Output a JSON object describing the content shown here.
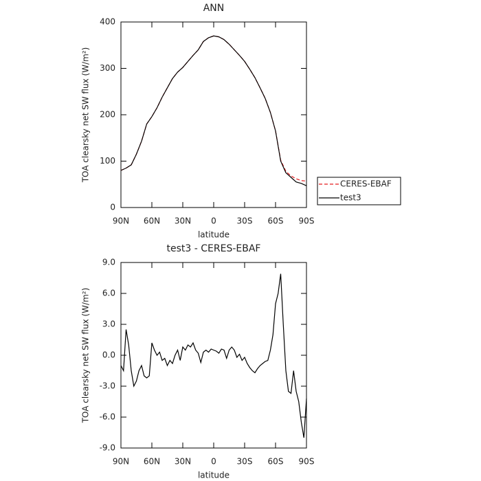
{
  "chart_data": [
    {
      "type": "line",
      "title": "ANN",
      "xlabel": "latitude",
      "ylabel": "TOA clearsky net SW flux (W/m²)",
      "x": [
        90,
        85,
        80,
        75,
        70,
        65,
        60,
        55,
        50,
        45,
        40,
        35,
        30,
        25,
        20,
        15,
        10,
        5,
        0,
        -5,
        -10,
        -15,
        -20,
        -25,
        -30,
        -35,
        -40,
        -45,
        -50,
        -55,
        -60,
        -65,
        -70,
        -75,
        -80,
        -85,
        -90
      ],
      "series": [
        {
          "name": "CERES-EBAF",
          "color": "#e41a1c",
          "line_style": "dashed",
          "values": [
            80,
            85,
            92,
            115,
            143,
            180,
            196,
            215,
            238,
            258,
            278,
            292,
            302,
            315,
            328,
            340,
            358,
            366,
            370,
            368,
            362,
            352,
            340,
            328,
            315,
            298,
            280,
            258,
            235,
            205,
            165,
            102,
            78,
            68,
            62,
            58,
            57
          ]
        },
        {
          "name": "test3",
          "color": "#000000",
          "line_style": "solid",
          "values": [
            80,
            85,
            92,
            115,
            143,
            180,
            196,
            215,
            238,
            258,
            278,
            292,
            302,
            315,
            328,
            340,
            358,
            366,
            370,
            368,
            362,
            352,
            340,
            328,
            315,
            298,
            280,
            258,
            235,
            205,
            165,
            100,
            75,
            65,
            55,
            52,
            47
          ]
        }
      ],
      "xlim": [
        90,
        -90
      ],
      "xticks": [
        {
          "value": 90,
          "label": "90N"
        },
        {
          "value": 60,
          "label": "60N"
        },
        {
          "value": 30,
          "label": "30N"
        },
        0,
        {
          "value": -30,
          "label": "30S"
        },
        {
          "value": -60,
          "label": "60S"
        },
        {
          "value": -90,
          "label": "90S"
        }
      ],
      "ylim": [
        0,
        400
      ],
      "yticks": [
        0,
        100,
        200,
        300,
        400
      ],
      "legend": "right"
    },
    {
      "type": "line",
      "title": "test3 - CERES-EBAF",
      "xlabel": "latitude",
      "ylabel": "TOA clearsky net SW flux (W/m²)",
      "x": [
        90,
        87.5,
        85,
        82.5,
        80,
        77.5,
        75,
        72.5,
        70,
        67.5,
        65,
        62.5,
        60,
        57.5,
        55,
        52.5,
        50,
        47.5,
        45,
        42.5,
        40,
        37.5,
        35,
        32.5,
        30,
        27.5,
        25,
        22.5,
        20,
        17.5,
        15,
        12.5,
        10,
        7.5,
        5,
        2.5,
        0,
        -2.5,
        -5,
        -7.5,
        -10,
        -12.5,
        -15,
        -17.5,
        -20,
        -22.5,
        -25,
        -27.5,
        -30,
        -32.5,
        -35,
        -37.5,
        -40,
        -42.5,
        -45,
        -47.5,
        -50,
        -52.5,
        -55,
        -57.5,
        -60,
        -62.5,
        -65,
        -67.5,
        -70,
        -72.5,
        -75,
        -77.5,
        -80,
        -82.5,
        -85,
        -87.5,
        -90
      ],
      "series": [
        {
          "color": "#000000",
          "line_style": "solid",
          "values": [
            -1.0,
            -1.5,
            2.5,
            1.0,
            -1.5,
            -3.0,
            -2.5,
            -1.5,
            -1.0,
            -2.0,
            -2.2,
            -2.0,
            1.2,
            0.5,
            0.0,
            0.3,
            -0.5,
            -0.3,
            -1.0,
            -0.5,
            -0.8,
            0.0,
            0.5,
            -0.5,
            0.8,
            0.5,
            1.0,
            0.8,
            1.2,
            0.5,
            0.2,
            -0.7,
            0.3,
            0.5,
            0.3,
            0.6,
            0.5,
            0.4,
            0.2,
            0.6,
            0.5,
            -0.3,
            0.5,
            0.8,
            0.5,
            -0.2,
            0.1,
            -0.5,
            -0.2,
            -0.8,
            -1.2,
            -1.5,
            -1.7,
            -1.3,
            -1.0,
            -0.8,
            -0.6,
            -0.5,
            0.5,
            2.0,
            5.0,
            6.0,
            7.9,
            3.0,
            -1.5,
            -3.5,
            -3.7,
            -1.5,
            -3.5,
            -4.5,
            -6.5,
            -8.0,
            -4.2
          ]
        }
      ],
      "xlim": [
        90,
        -90
      ],
      "xticks": [
        {
          "value": 90,
          "label": "90N"
        },
        {
          "value": 60,
          "label": "60N"
        },
        {
          "value": 30,
          "label": "30N"
        },
        0,
        {
          "value": -30,
          "label": "30S"
        },
        {
          "value": -60,
          "label": "60S"
        },
        {
          "value": -90,
          "label": "90S"
        }
      ],
      "ylim": [
        -9,
        9
      ],
      "yticks": [
        {
          "value": -9,
          "label": "-9.0"
        },
        {
          "value": -6,
          "label": "-6.0"
        },
        {
          "value": -3,
          "label": "-3.0"
        },
        {
          "value": 0,
          "label": "0.0"
        },
        {
          "value": 3,
          "label": "3.0"
        },
        {
          "value": 6,
          "label": "6.0"
        },
        {
          "value": 9,
          "label": "9.0"
        }
      ]
    }
  ]
}
